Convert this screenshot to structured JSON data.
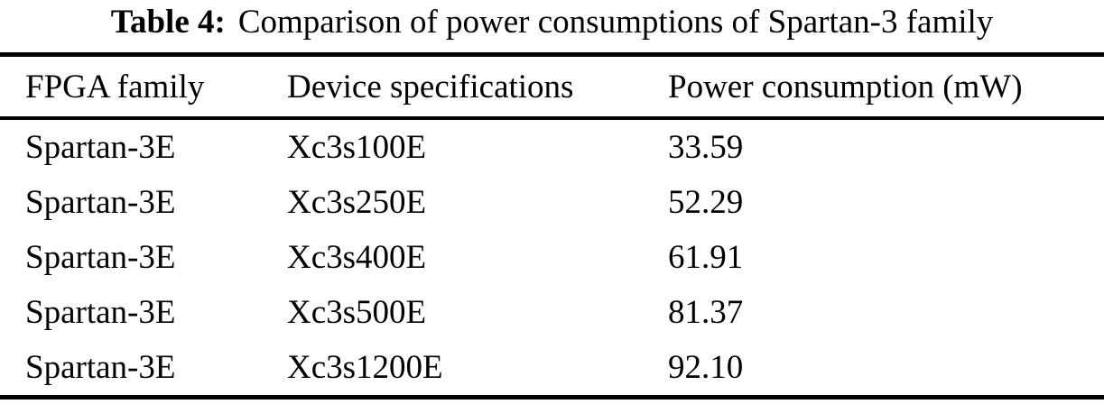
{
  "table": {
    "label": "Table 4:",
    "caption": "Comparison of power consumptions of Spartan-3 family",
    "columns": [
      "FPGA family",
      "Device specifications",
      "Power consumption (mW)"
    ],
    "rows": [
      {
        "family": "Spartan-3E",
        "device": "Xc3s100E",
        "power": "33.59"
      },
      {
        "family": "Spartan-3E",
        "device": "Xc3s250E",
        "power": "52.29"
      },
      {
        "family": "Spartan-3E",
        "device": "Xc3s400E",
        "power": "61.91"
      },
      {
        "family": "Spartan-3E",
        "device": "Xc3s500E",
        "power": "81.37"
      },
      {
        "family": "Spartan-3E",
        "device": "Xc3s1200E",
        "power": "92.10"
      }
    ],
    "colors": {
      "text": "#000000",
      "background": "#ffffff",
      "rule": "#000000"
    }
  },
  "chart_data": {
    "type": "table",
    "title": "Table 4: Comparison of power consumptions of Spartan-3 family",
    "columns": [
      "FPGA family",
      "Device specifications",
      "Power consumption (mW)"
    ],
    "rows": [
      [
        "Spartan-3E",
        "Xc3s100E",
        33.59
      ],
      [
        "Spartan-3E",
        "Xc3s250E",
        52.29
      ],
      [
        "Spartan-3E",
        "Xc3s400E",
        61.91
      ],
      [
        "Spartan-3E",
        "Xc3s500E",
        81.37
      ],
      [
        "Spartan-3E",
        "Xc3s1200E",
        92.1
      ]
    ]
  }
}
